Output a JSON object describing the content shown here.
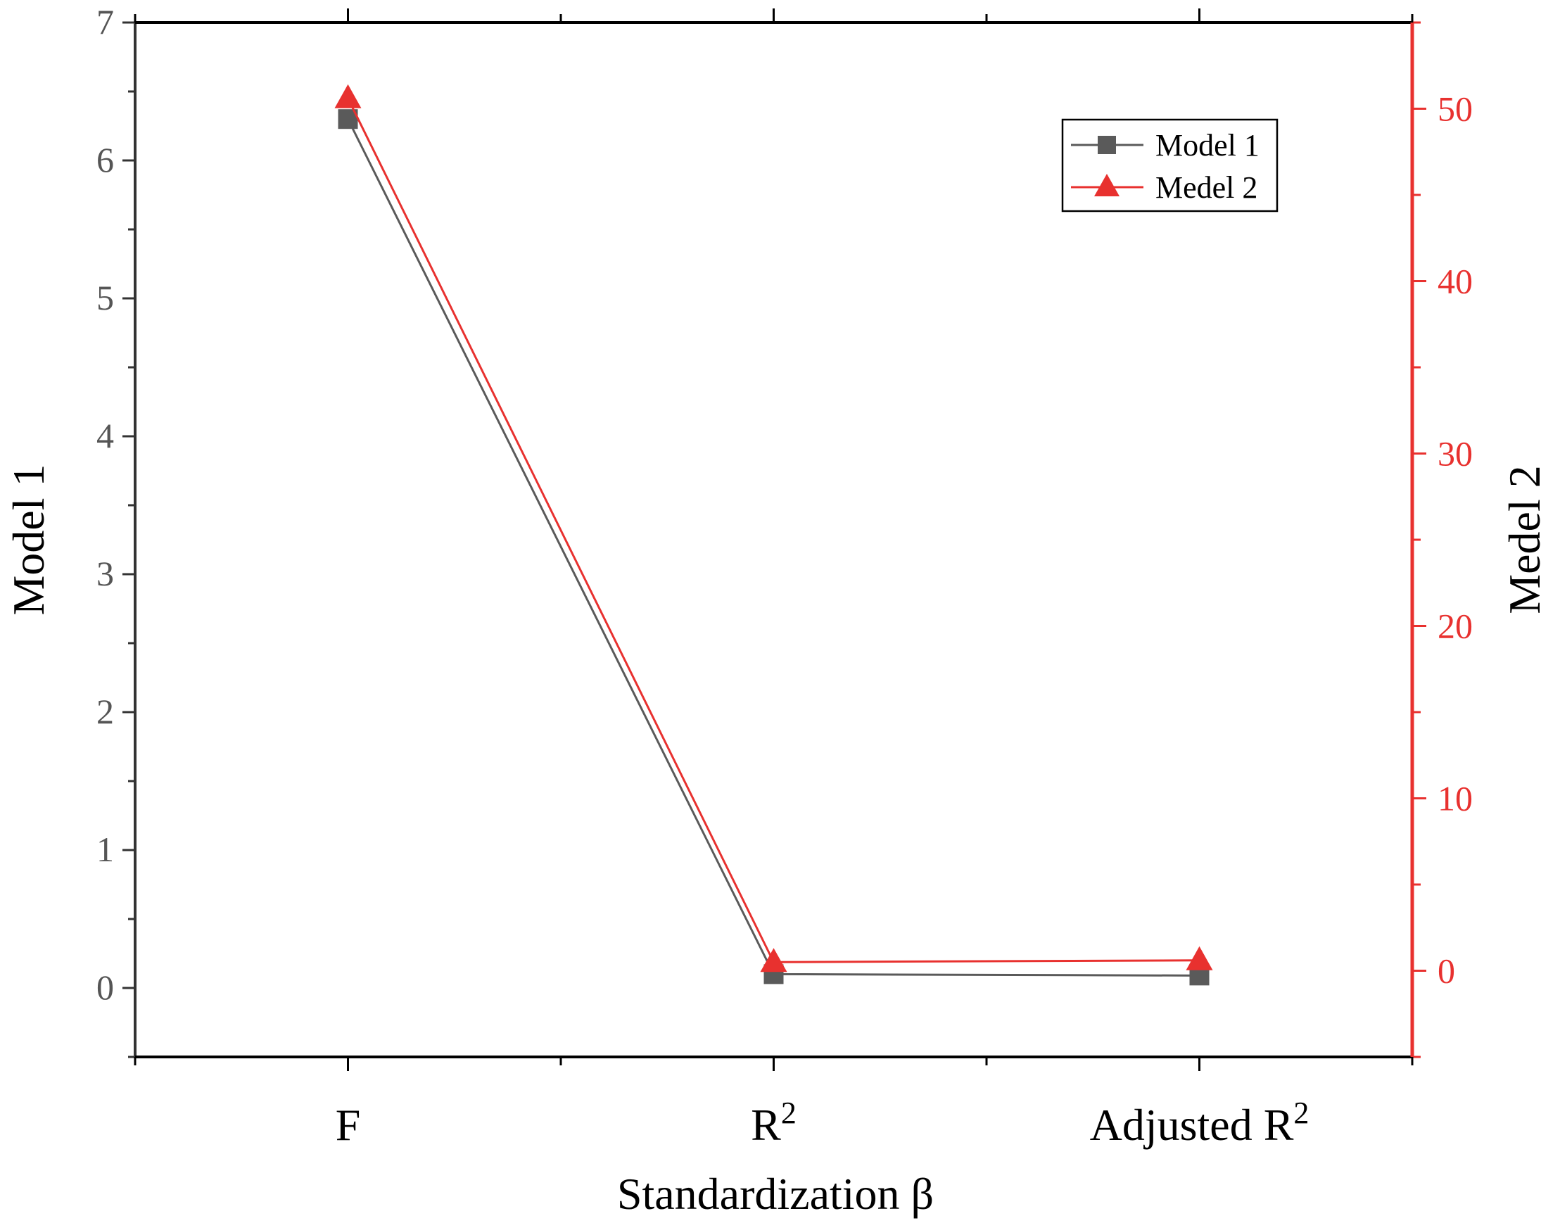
{
  "chart_data": {
    "type": "line",
    "xlabel": "Standardization β",
    "categories": [
      {
        "base": "F",
        "sup": ""
      },
      {
        "base": "R",
        "sup": "2"
      },
      {
        "base": "Adjusted R",
        "sup": "2"
      }
    ],
    "left_axis": {
      "label": "Model 1",
      "ylim": [
        -0.5,
        7
      ],
      "ticks": [
        0,
        1,
        2,
        3,
        4,
        5,
        6,
        7
      ],
      "color": "#555555"
    },
    "right_axis": {
      "label": "Medel 2",
      "ylim": [
        -5,
        55
      ],
      "ticks": [
        0,
        10,
        20,
        30,
        40,
        50
      ],
      "color": "#e8312f"
    },
    "series": [
      {
        "name": "Model 1",
        "axis": "left",
        "marker": "square",
        "color": "#5a5a5a",
        "values": [
          6.3,
          0.1,
          0.09
        ]
      },
      {
        "name": "Medel 2",
        "axis": "right",
        "marker": "triangle",
        "color": "#e8312f",
        "values": [
          50.6,
          0.5,
          0.6
        ]
      }
    ],
    "legend": {
      "position": "top-right"
    },
    "grid": false
  }
}
